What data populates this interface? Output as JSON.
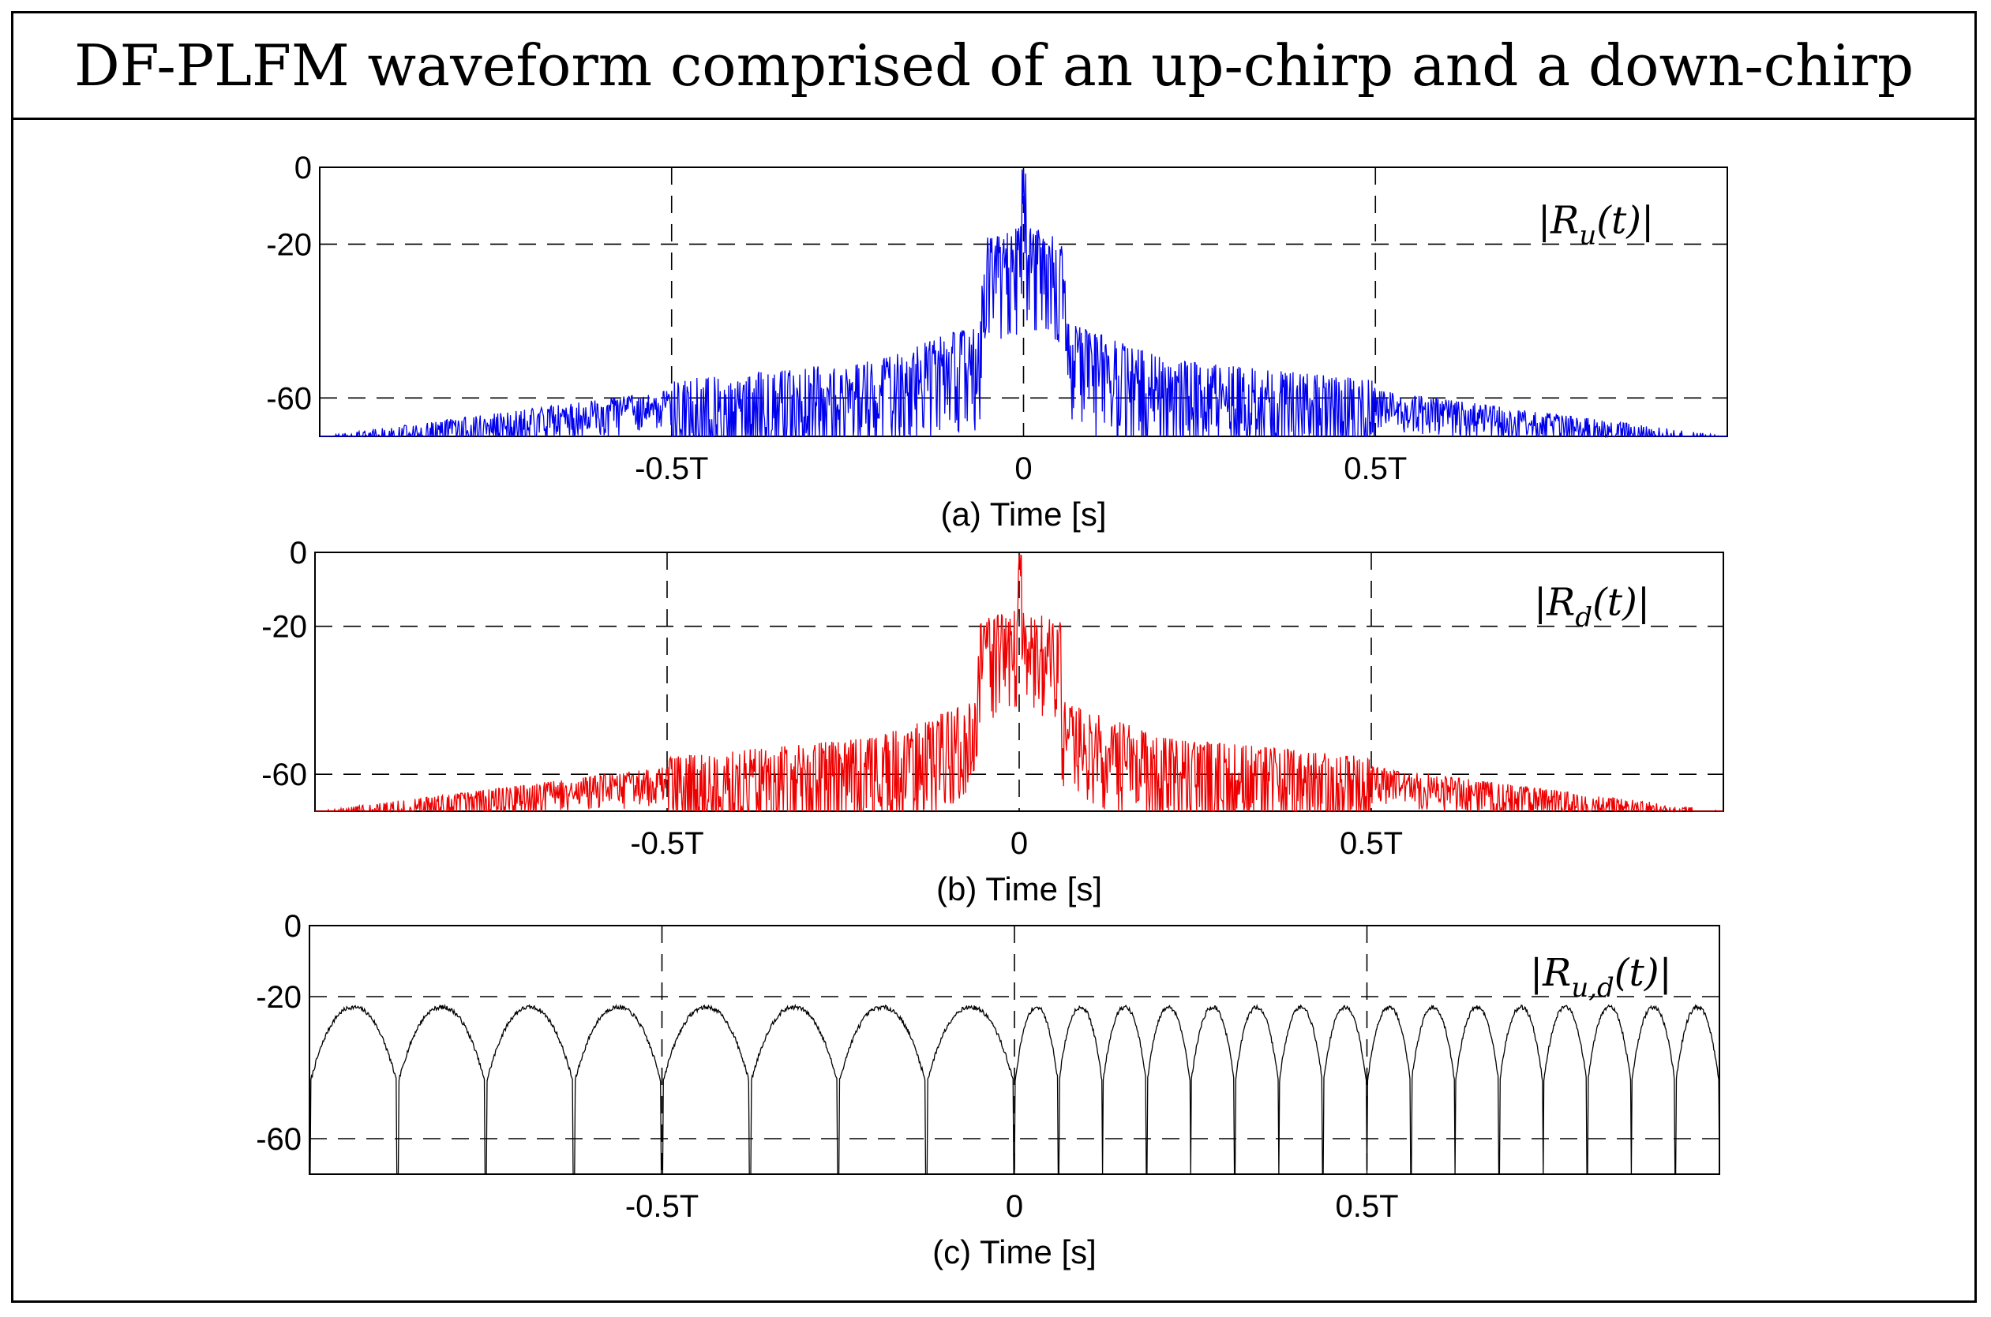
{
  "figure_title": "DF-PLFM waveform comprised of an up-chirp and a down-chirp",
  "chart_data": [
    {
      "type": "line",
      "panel": "a",
      "xlabel": "(a) Time [s]",
      "annotation": {
        "prefix": "|R",
        "sub": "u",
        "suffix": "(t)|"
      },
      "color": "#0000ee",
      "x_ticks": [
        "-0.5T",
        "0",
        "0.5T"
      ],
      "x_tick_values": [
        -0.5,
        0,
        0.5
      ],
      "y_ticks": [
        "0",
        "-20",
        "-60"
      ],
      "y_tick_values": [
        0,
        -20,
        -60
      ],
      "xlim": [
        -1,
        1
      ],
      "ylim": [
        -70,
        0
      ],
      "grid": "dashed",
      "signal": {
        "peak_db": 0,
        "first_sidelobe_db": -15,
        "near_floor_db": -55,
        "edge_floor_db": -70
      }
    },
    {
      "type": "line",
      "panel": "b",
      "xlabel": "(b) Time [s]",
      "annotation": {
        "prefix": "|R",
        "sub": "d",
        "suffix": "(t)|"
      },
      "color": "#ee0000",
      "x_ticks": [
        "-0.5T",
        "0",
        "0.5T"
      ],
      "x_tick_values": [
        -0.5,
        0,
        0.5
      ],
      "y_ticks": [
        "0",
        "-20",
        "-60"
      ],
      "y_tick_values": [
        0,
        -20,
        -60
      ],
      "xlim": [
        -1,
        1
      ],
      "ylim": [
        -70,
        0
      ],
      "grid": "dashed",
      "signal": {
        "peak_db": 0,
        "first_sidelobe_db": -15,
        "near_floor_db": -55,
        "edge_floor_db": -70
      }
    },
    {
      "type": "line",
      "panel": "c",
      "xlabel": "(c) Time [s]",
      "annotation": {
        "prefix": "|R",
        "sub": "u,d",
        "suffix": "(t)|"
      },
      "color": "#000000",
      "x_ticks": [
        "-0.5T",
        "0",
        "0.5T"
      ],
      "x_tick_values": [
        -0.5,
        0,
        0.5
      ],
      "y_ticks": [
        "0",
        "-20",
        "-60"
      ],
      "y_tick_values": [
        0,
        -20,
        -60
      ],
      "xlim": [
        -1,
        1
      ],
      "ylim": [
        -70,
        0
      ],
      "grid": "dashed",
      "signal": {
        "left_lobes": 8,
        "right_lobes": 16,
        "lobe_top_db": -23,
        "lobe_base_db": -45,
        "notch_db": -70
      }
    }
  ]
}
